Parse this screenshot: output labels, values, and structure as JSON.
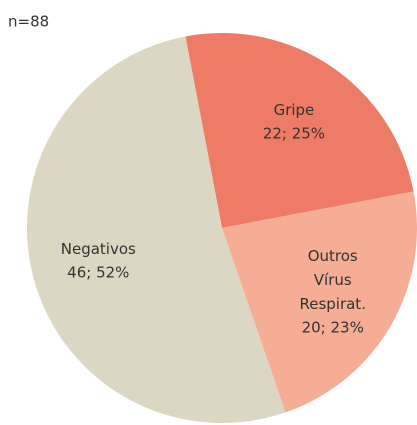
{
  "chart_data": {
    "type": "pie",
    "title": "n=88",
    "categories": [
      "Gripe",
      "Outros Vírus Respirat.",
      "Negativos"
    ],
    "values": [
      22,
      20,
      46
    ],
    "value_labels": [
      "22; 25%",
      "20; 23%",
      "46; 52%"
    ],
    "colors": [
      "#ee7b65",
      "#f5ad95",
      "#dcd7c3"
    ]
  }
}
